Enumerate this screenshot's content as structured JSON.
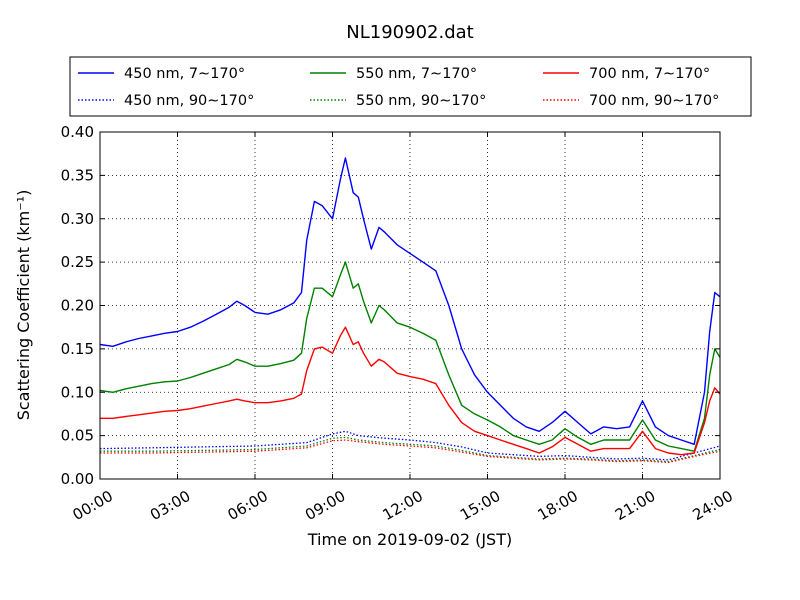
{
  "chart_data": {
    "type": "line",
    "title": "NL190902.dat",
    "xlabel": "Time on 2019-09-02 (JST)",
    "ylabel": "Scattering Coefficient (km⁻¹)",
    "x_unit": "hour of day",
    "xlim": [
      0,
      24
    ],
    "ylim": [
      0.0,
      0.4
    ],
    "xticks": [
      0,
      3,
      6,
      9,
      12,
      15,
      18,
      21,
      24
    ],
    "xtick_labels": [
      "00:00",
      "03:00",
      "06:00",
      "09:00",
      "12:00",
      "15:00",
      "18:00",
      "21:00",
      "24:00"
    ],
    "yticks": [
      0.0,
      0.05,
      0.1,
      0.15,
      0.2,
      0.25,
      0.3,
      0.35,
      0.4
    ],
    "ytick_labels": [
      "0.00",
      "0.05",
      "0.10",
      "0.15",
      "0.20",
      "0.25",
      "0.30",
      "0.35",
      "0.40"
    ],
    "grid": true,
    "legend_position": "top",
    "series": [
      {
        "name": "450 nm, 7∼170°",
        "color": "#0000ff",
        "style": "solid",
        "x": [
          0,
          0.5,
          1,
          1.5,
          2,
          2.5,
          3,
          3.5,
          4,
          4.5,
          5,
          5.3,
          5.6,
          6,
          6.5,
          7,
          7.5,
          7.8,
          8.0,
          8.3,
          8.6,
          9.0,
          9.3,
          9.5,
          9.8,
          10.0,
          10.2,
          10.5,
          10.8,
          11.0,
          11.5,
          12.0,
          12.5,
          13.0,
          13.5,
          14.0,
          14.5,
          15.0,
          15.5,
          16.0,
          16.5,
          17.0,
          17.5,
          18.0,
          18.5,
          19.0,
          19.5,
          20.0,
          20.5,
          21.0,
          21.5,
          22.0,
          22.5,
          23.0,
          23.4,
          23.6,
          23.8,
          24.0
        ],
        "y": [
          0.155,
          0.153,
          0.158,
          0.162,
          0.165,
          0.168,
          0.17,
          0.175,
          0.182,
          0.19,
          0.198,
          0.205,
          0.2,
          0.192,
          0.19,
          0.195,
          0.203,
          0.215,
          0.275,
          0.32,
          0.315,
          0.3,
          0.345,
          0.37,
          0.33,
          0.325,
          0.3,
          0.265,
          0.29,
          0.285,
          0.27,
          0.26,
          0.25,
          0.24,
          0.2,
          0.15,
          0.12,
          0.1,
          0.085,
          0.07,
          0.06,
          0.055,
          0.065,
          0.078,
          0.065,
          0.052,
          0.06,
          0.058,
          0.06,
          0.09,
          0.06,
          0.05,
          0.045,
          0.04,
          0.1,
          0.17,
          0.215,
          0.21
        ]
      },
      {
        "name": "450 nm, 90∼170°",
        "color": "#0000ff",
        "style": "dotted",
        "x": [
          0,
          2,
          4,
          6,
          8,
          9,
          9.5,
          10,
          11,
          12,
          13,
          14,
          15,
          16,
          17,
          18,
          19,
          20,
          21,
          22,
          23,
          24
        ],
        "y": [
          0.035,
          0.036,
          0.037,
          0.038,
          0.042,
          0.052,
          0.055,
          0.05,
          0.047,
          0.045,
          0.042,
          0.037,
          0.03,
          0.028,
          0.026,
          0.027,
          0.025,
          0.023,
          0.024,
          0.022,
          0.03,
          0.038
        ]
      },
      {
        "name": "550 nm, 7∼170°",
        "color": "#008000",
        "style": "solid",
        "x": [
          0,
          0.5,
          1,
          1.5,
          2,
          2.5,
          3,
          3.5,
          4,
          4.5,
          5,
          5.3,
          5.6,
          6,
          6.5,
          7,
          7.5,
          7.8,
          8.0,
          8.3,
          8.6,
          9.0,
          9.3,
          9.5,
          9.8,
          10.0,
          10.2,
          10.5,
          10.8,
          11.0,
          11.5,
          12.0,
          12.5,
          13.0,
          13.5,
          14.0,
          14.5,
          15.0,
          15.5,
          16.0,
          16.5,
          17.0,
          17.5,
          18.0,
          18.5,
          19.0,
          19.5,
          20.0,
          20.5,
          21.0,
          21.5,
          22.0,
          22.5,
          23.0,
          23.4,
          23.6,
          23.8,
          24.0
        ],
        "y": [
          0.102,
          0.1,
          0.104,
          0.107,
          0.11,
          0.112,
          0.113,
          0.117,
          0.122,
          0.127,
          0.132,
          0.138,
          0.135,
          0.13,
          0.13,
          0.133,
          0.137,
          0.145,
          0.185,
          0.22,
          0.22,
          0.21,
          0.235,
          0.25,
          0.22,
          0.225,
          0.205,
          0.18,
          0.2,
          0.195,
          0.18,
          0.175,
          0.168,
          0.16,
          0.12,
          0.085,
          0.075,
          0.068,
          0.06,
          0.05,
          0.045,
          0.04,
          0.045,
          0.058,
          0.048,
          0.04,
          0.045,
          0.045,
          0.045,
          0.068,
          0.045,
          0.038,
          0.035,
          0.032,
          0.07,
          0.12,
          0.15,
          0.14
        ]
      },
      {
        "name": "550 nm, 90∼170°",
        "color": "#008000",
        "style": "dotted",
        "x": [
          0,
          2,
          4,
          6,
          8,
          9,
          9.5,
          10,
          11,
          12,
          13,
          14,
          15,
          16,
          17,
          18,
          19,
          20,
          21,
          22,
          23,
          24
        ],
        "y": [
          0.032,
          0.032,
          0.033,
          0.034,
          0.038,
          0.047,
          0.048,
          0.045,
          0.042,
          0.04,
          0.038,
          0.033,
          0.027,
          0.025,
          0.023,
          0.024,
          0.023,
          0.021,
          0.022,
          0.02,
          0.027,
          0.034
        ]
      },
      {
        "name": "700 nm, 7∼170°",
        "color": "#ff0000",
        "style": "solid",
        "x": [
          0,
          0.5,
          1,
          1.5,
          2,
          2.5,
          3,
          3.5,
          4,
          4.5,
          5,
          5.3,
          5.6,
          6,
          6.5,
          7,
          7.5,
          7.8,
          8.0,
          8.3,
          8.6,
          9.0,
          9.3,
          9.5,
          9.8,
          10.0,
          10.2,
          10.5,
          10.8,
          11.0,
          11.5,
          12.0,
          12.5,
          13.0,
          13.5,
          14.0,
          14.5,
          15.0,
          15.5,
          16.0,
          16.5,
          17.0,
          17.5,
          18.0,
          18.5,
          19.0,
          19.5,
          20.0,
          20.5,
          21.0,
          21.5,
          22.0,
          22.5,
          23.0,
          23.4,
          23.6,
          23.8,
          24.0
        ],
        "y": [
          0.07,
          0.07,
          0.072,
          0.074,
          0.076,
          0.078,
          0.079,
          0.081,
          0.084,
          0.087,
          0.09,
          0.092,
          0.09,
          0.088,
          0.088,
          0.09,
          0.093,
          0.098,
          0.125,
          0.15,
          0.152,
          0.145,
          0.165,
          0.175,
          0.155,
          0.158,
          0.145,
          0.13,
          0.138,
          0.135,
          0.122,
          0.118,
          0.115,
          0.11,
          0.085,
          0.065,
          0.055,
          0.05,
          0.045,
          0.04,
          0.035,
          0.03,
          0.037,
          0.048,
          0.04,
          0.032,
          0.035,
          0.035,
          0.035,
          0.055,
          0.035,
          0.03,
          0.028,
          0.03,
          0.065,
          0.09,
          0.105,
          0.098
        ]
      },
      {
        "name": "700 nm, 90∼170°",
        "color": "#ff0000",
        "style": "dotted",
        "x": [
          0,
          2,
          4,
          6,
          8,
          9,
          9.5,
          10,
          11,
          12,
          13,
          14,
          15,
          16,
          17,
          18,
          19,
          20,
          21,
          22,
          23,
          24
        ],
        "y": [
          0.03,
          0.03,
          0.031,
          0.032,
          0.036,
          0.044,
          0.045,
          0.043,
          0.04,
          0.038,
          0.036,
          0.031,
          0.026,
          0.024,
          0.022,
          0.023,
          0.022,
          0.02,
          0.021,
          0.019,
          0.026,
          0.032
        ]
      }
    ]
  }
}
